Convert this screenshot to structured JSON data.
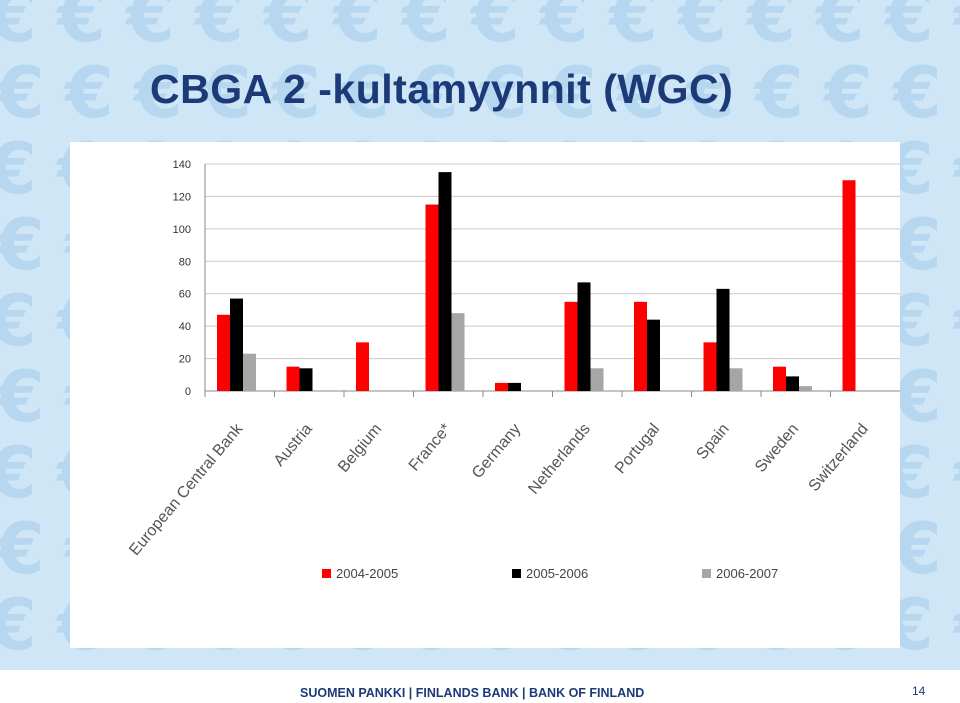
{
  "slide": {
    "title": "CBGA 2 -kultamyynnit (WGC)",
    "footer": "SUOMEN PANKKI | FINLANDS BANK | BANK OF FINLAND",
    "page_number": "14",
    "background_symbol": "€",
    "colors": {
      "title": "#1c3a78",
      "background": "#cfe6f6",
      "watermark": "#b6d7ef"
    }
  },
  "chart_data": {
    "type": "bar",
    "title": "",
    "xlabel": "",
    "ylabel": "",
    "ylim": [
      0,
      140
    ],
    "yticks": [
      0,
      20,
      40,
      60,
      80,
      100,
      120,
      140
    ],
    "grid": true,
    "legend_position": "bottom",
    "categories": [
      "European Central Bank",
      "Austria",
      "Belgium",
      "France*",
      "Germany",
      "Netherlands",
      "Portugal",
      "Spain",
      "Sweden",
      "Switzerland"
    ],
    "series": [
      {
        "name": "2004-2005",
        "color": "#ff0000",
        "values": [
          47,
          15,
          30,
          115,
          5,
          55,
          55,
          30,
          15,
          130
        ]
      },
      {
        "name": "2005-2006",
        "color": "#000000",
        "values": [
          57,
          14,
          0,
          135,
          5,
          67,
          44,
          63,
          9,
          0
        ]
      },
      {
        "name": "2006-2007",
        "color": "#a6a6a6",
        "values": [
          23,
          0,
          0,
          48,
          0,
          14,
          0,
          14,
          3,
          0
        ]
      }
    ]
  }
}
